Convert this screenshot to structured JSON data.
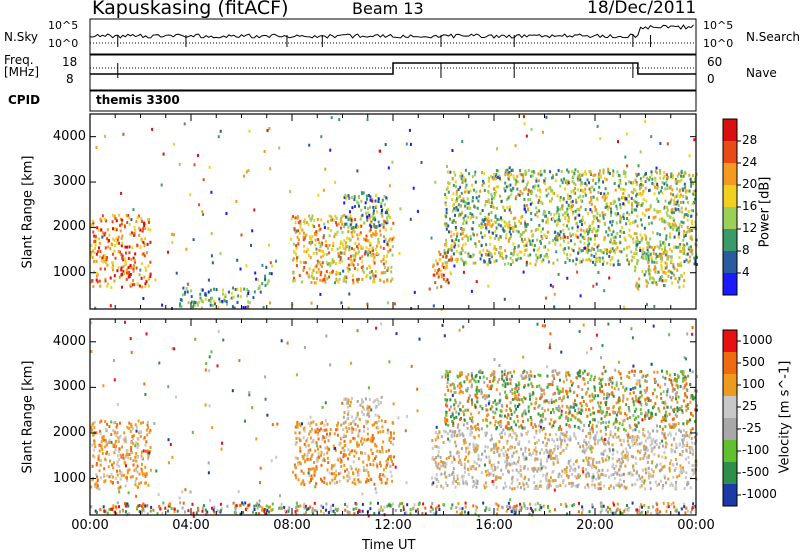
{
  "header": {
    "title": "Kapuskasing (fitACF)",
    "beam": "Beam 13",
    "date": "18/Dec/2011"
  },
  "status_panels": {
    "nsky_label": "N.Sky",
    "nsearch_label": "N.Search",
    "nsky_ticks": [
      "10^5",
      "10^0"
    ],
    "nsearch_ticks": [
      "10^5",
      "10^0"
    ],
    "freq_label": "Freq.",
    "freq_unit": "[MHz]",
    "freq_ticks": [
      "18",
      "8"
    ],
    "nave_label": "Nave",
    "nave_ticks": [
      "60",
      "0"
    ],
    "cpid_label": "CPID",
    "cpid_value": "themis 3300"
  },
  "chart_data": [
    {
      "type": "heatmap",
      "panel": "power",
      "ylabel": "Slant Range [km]",
      "colorbar_label": "Power [dB]",
      "y_ticks": [
        1000,
        2000,
        3000,
        4000
      ],
      "ylim": [
        200,
        4500
      ],
      "xlim_hours": [
        0,
        24
      ],
      "colorbar_ticks": [
        4,
        8,
        12,
        16,
        20,
        24,
        28
      ],
      "colorbar_colors": [
        "#1a1aff",
        "#2a5aa0",
        "#3a9a6a",
        "#9ad05a",
        "#f0d020",
        "#f59a20",
        "#e84a18",
        "#d81010"
      ],
      "regions": [
        {
          "t": [
            0.0,
            2.4
          ],
          "r": [
            700,
            2300
          ],
          "level": 0.75
        },
        {
          "t": [
            3.5,
            6.5
          ],
          "r": [
            250,
            700
          ],
          "level": 0.35
        },
        {
          "t": [
            6.5,
            7.2
          ],
          "r": [
            600,
            1200
          ],
          "level": 0.3
        },
        {
          "t": [
            8.0,
            12.0
          ],
          "r": [
            800,
            2300
          ],
          "level": 0.6
        },
        {
          "t": [
            10.0,
            11.8
          ],
          "r": [
            2000,
            2800
          ],
          "level": 0.3
        },
        {
          "t": [
            13.5,
            14.3
          ],
          "r": [
            700,
            1500
          ],
          "level": 0.7
        },
        {
          "t": [
            14.0,
            24.0
          ],
          "r": [
            1200,
            3300
          ],
          "level": 0.45
        },
        {
          "t": [
            21.5,
            23.5
          ],
          "r": [
            700,
            1600
          ],
          "level": 0.5
        }
      ]
    },
    {
      "type": "heatmap",
      "panel": "velocity",
      "xlabel": "Time UT",
      "ylabel": "Slant Range [km]",
      "colorbar_label": "Velocity [m s^-1]",
      "y_ticks": [
        1000,
        2000,
        3000,
        4000
      ],
      "ylim": [
        200,
        4500
      ],
      "x_ticks": [
        "00:00",
        "04:00",
        "08:00",
        "12:00",
        "16:00",
        "20:00",
        "00:00"
      ],
      "xlim_hours": [
        0,
        24
      ],
      "colorbar_ticks": [
        1000,
        500,
        100,
        25,
        -25,
        -100,
        -500,
        -1000
      ],
      "colorbar_colors": [
        "#1a3aa8",
        "#2f8f4a",
        "#60c030",
        "#a8a8a8",
        "#c8c8c8",
        "#ee9a20",
        "#f06a10",
        "#e81010"
      ],
      "regions": [
        {
          "t": [
            0.0,
            2.4
          ],
          "r": [
            800,
            2300
          ],
          "kind": "orange"
        },
        {
          "t": [
            8.0,
            12.0
          ],
          "r": [
            900,
            2300
          ],
          "kind": "orange"
        },
        {
          "t": [
            10.0,
            11.5
          ],
          "r": [
            2200,
            2800
          ],
          "kind": "grey"
        },
        {
          "t": [
            13.5,
            24.0
          ],
          "r": [
            800,
            2100
          ],
          "kind": "grey"
        },
        {
          "t": [
            14.0,
            24.0
          ],
          "r": [
            2100,
            3400
          ],
          "kind": "orange-green"
        },
        {
          "t": [
            0.0,
            24.0
          ],
          "r": [
            250,
            500
          ],
          "kind": "mixed"
        }
      ]
    }
  ]
}
